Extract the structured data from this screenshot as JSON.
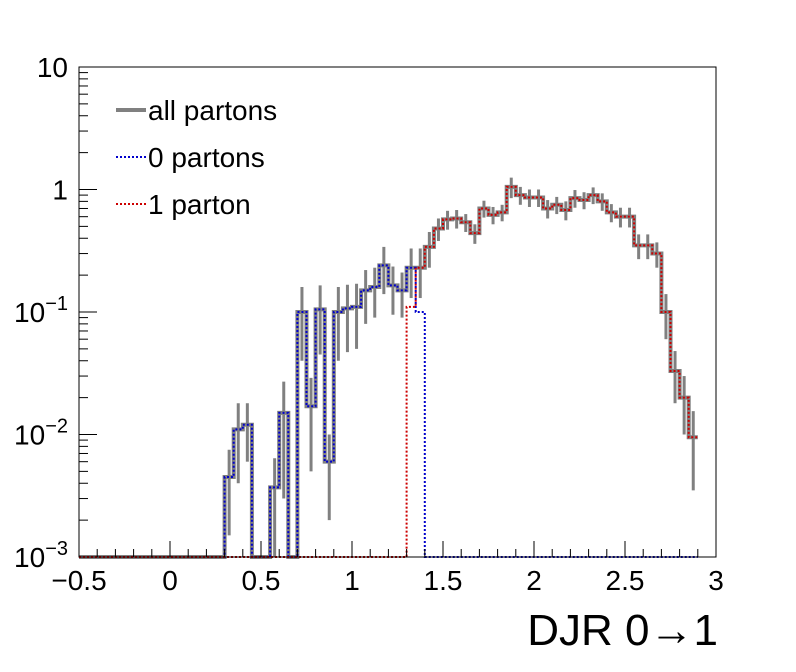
{
  "chart_data": {
    "type": "line",
    "xlabel": "DJR 0→1",
    "ylabel": "",
    "xlim": [
      -0.5,
      3
    ],
    "ylim": [
      0.001,
      10
    ],
    "y_scale": "log",
    "grid": false,
    "legend_position": "top-left",
    "x_ticks": [
      "−0.5",
      "0",
      "0.5",
      "1",
      "1.5",
      "2",
      "2.5",
      "3"
    ],
    "x_tick_values": [
      -0.5,
      0,
      0.5,
      1,
      1.5,
      2,
      2.5,
      3
    ],
    "y_ticks": [
      {
        "value": 0.001,
        "base": "10",
        "exp": "−3"
      },
      {
        "value": 0.01,
        "base": "10",
        "exp": "−2"
      },
      {
        "value": 0.1,
        "base": "10",
        "exp": "−1"
      },
      {
        "value": 1,
        "base": "1",
        "exp": ""
      },
      {
        "value": 10,
        "base": "10",
        "exp": ""
      }
    ],
    "bin_edges_start": -0.5,
    "bin_width": 0.05,
    "series": [
      {
        "name": "all partons",
        "color": "#808080",
        "style": "solid",
        "values": [
          0,
          0,
          0,
          0,
          0,
          0,
          0,
          0,
          0,
          0,
          0,
          0,
          0,
          0,
          0,
          0,
          0.0045,
          0.011,
          0.012,
          0,
          0,
          0.0037,
          0.015,
          0,
          0.1,
          0.017,
          0.105,
          0.006,
          0.1,
          0.107,
          0.11,
          0.15,
          0.16,
          0.24,
          0.165,
          0.15,
          0.23,
          0.23,
          0.34,
          0.48,
          0.57,
          0.58,
          0.54,
          0.44,
          0.7,
          0.62,
          0.65,
          1.05,
          0.9,
          0.86,
          0.86,
          0.7,
          0.75,
          0.68,
          0.85,
          0.82,
          0.9,
          0.8,
          0.65,
          0.6,
          0.6,
          0.35,
          0.35,
          0.3,
          0.1,
          0.033,
          0.02,
          0.0095
        ],
        "errors": [
          0,
          0,
          0,
          0,
          0,
          0,
          0,
          0,
          0,
          0,
          0,
          0,
          0,
          0,
          0,
          0,
          0.003,
          0.007,
          0.006,
          0,
          0,
          0.0027,
          0.012,
          0,
          0.06,
          0.012,
          0.06,
          0.004,
          0.06,
          0.06,
          0.06,
          0.07,
          0.07,
          0.1,
          0.07,
          0.06,
          0.1,
          0.1,
          0.11,
          0.1,
          0.1,
          0.1,
          0.09,
          0.08,
          0.11,
          0.1,
          0.1,
          0.2,
          0.15,
          0.14,
          0.14,
          0.12,
          0.12,
          0.12,
          0.14,
          0.13,
          0.14,
          0.13,
          0.11,
          0.11,
          0.11,
          0.08,
          0.08,
          0.07,
          0.04,
          0.015,
          0.01,
          0.006
        ]
      },
      {
        "name": "0 partons",
        "color": "#0000cc",
        "style": "dotted",
        "values": [
          0,
          0,
          0,
          0,
          0,
          0,
          0,
          0,
          0,
          0,
          0,
          0,
          0,
          0,
          0,
          0,
          0.0045,
          0.011,
          0.012,
          0,
          0,
          0.0037,
          0.015,
          0,
          0.1,
          0.017,
          0.105,
          0.006,
          0.1,
          0.107,
          0.11,
          0.15,
          0.16,
          0.24,
          0.165,
          0.15,
          0.23,
          0.1,
          0,
          0,
          0,
          0,
          0,
          0,
          0,
          0,
          0,
          0,
          0,
          0,
          0,
          0,
          0,
          0,
          0,
          0,
          0,
          0,
          0,
          0,
          0,
          0,
          0,
          0,
          0,
          0,
          0,
          0
        ]
      },
      {
        "name": "1 parton",
        "color": "#cc0000",
        "style": "dotted",
        "values": [
          0,
          0,
          0,
          0,
          0,
          0,
          0,
          0,
          0,
          0,
          0,
          0,
          0,
          0,
          0,
          0,
          0,
          0,
          0,
          0,
          0,
          0,
          0,
          0,
          0,
          0,
          0,
          0,
          0,
          0,
          0,
          0,
          0,
          0,
          0,
          0,
          0.11,
          0.23,
          0.34,
          0.48,
          0.57,
          0.58,
          0.54,
          0.44,
          0.7,
          0.62,
          0.65,
          1.05,
          0.9,
          0.86,
          0.86,
          0.7,
          0.75,
          0.68,
          0.85,
          0.82,
          0.9,
          0.8,
          0.65,
          0.6,
          0.6,
          0.35,
          0.35,
          0.3,
          0.1,
          0.033,
          0.02,
          0.0095
        ]
      }
    ]
  }
}
